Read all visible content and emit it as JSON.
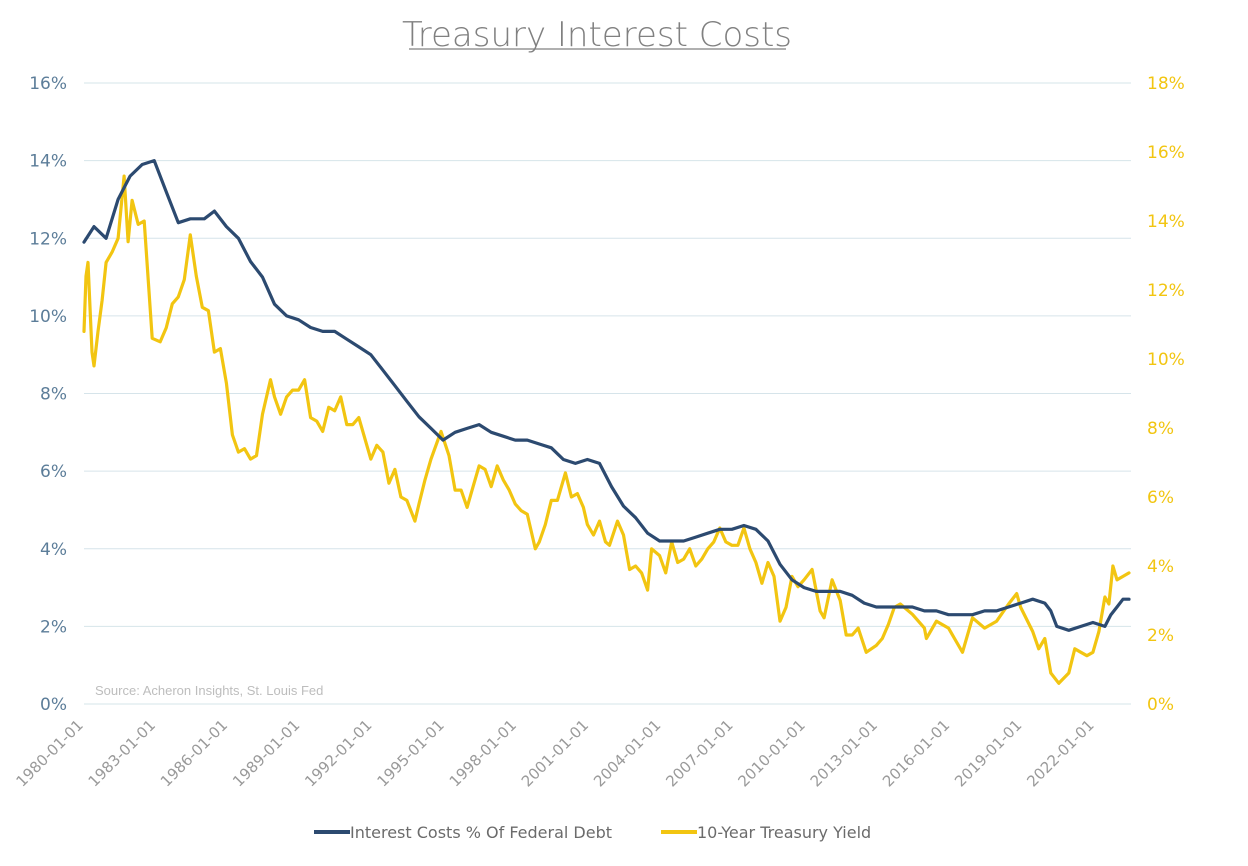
{
  "chart_data": {
    "type": "line",
    "title": "Treasury Interest Costs",
    "source": "Source: Acheron Insights, St. Louis Fed",
    "x_ticks": [
      "1980-01-01",
      "1983-01-01",
      "1986-01-01",
      "1989-01-01",
      "1992-01-01",
      "1995-01-01",
      "1998-01-01",
      "2001-01-01",
      "2004-01-01",
      "2007-01-01",
      "2010-01-01",
      "2013-01-01",
      "2016-01-01",
      "2019-01-01",
      "2022-01-01"
    ],
    "xlim": [
      "1980-01-01",
      "2023-07-01"
    ],
    "y_left": {
      "ticks": [
        "0%",
        "2%",
        "4%",
        "6%",
        "8%",
        "10%",
        "12%",
        "14%",
        "16%"
      ],
      "ylim": [
        0,
        16
      ]
    },
    "y_right": {
      "ticks": [
        "0%",
        "2%",
        "4%",
        "6%",
        "8%",
        "10%",
        "12%",
        "14%",
        "16%",
        "18%"
      ],
      "ylim": [
        0,
        18
      ]
    },
    "grid": "horizontal",
    "legend_position": "bottom",
    "series": [
      {
        "name": "Interest Costs % Of Federal Debt",
        "axis": "left",
        "color": "#2c4a70",
        "points": [
          [
            "1980-01-01",
            11.9
          ],
          [
            "1980-06-01",
            12.3
          ],
          [
            "1980-12-01",
            12.0
          ],
          [
            "1981-06-01",
            13.0
          ],
          [
            "1981-12-01",
            13.6
          ],
          [
            "1982-06-01",
            13.9
          ],
          [
            "1982-12-01",
            14.0
          ],
          [
            "1983-06-01",
            13.2
          ],
          [
            "1983-12-01",
            12.4
          ],
          [
            "1984-06-01",
            12.5
          ],
          [
            "1985-01-01",
            12.5
          ],
          [
            "1985-06-01",
            12.7
          ],
          [
            "1985-12-01",
            12.3
          ],
          [
            "1986-06-01",
            12.0
          ],
          [
            "1986-12-01",
            11.4
          ],
          [
            "1987-06-01",
            11.0
          ],
          [
            "1987-12-01",
            10.3
          ],
          [
            "1988-06-01",
            10.0
          ],
          [
            "1988-12-01",
            9.9
          ],
          [
            "1989-06-01",
            9.7
          ],
          [
            "1989-12-01",
            9.6
          ],
          [
            "1990-06-01",
            9.6
          ],
          [
            "1990-12-01",
            9.4
          ],
          [
            "1991-06-01",
            9.2
          ],
          [
            "1991-12-01",
            9.0
          ],
          [
            "1992-06-01",
            8.6
          ],
          [
            "1992-12-01",
            8.2
          ],
          [
            "1993-06-01",
            7.8
          ],
          [
            "1993-12-01",
            7.4
          ],
          [
            "1994-06-01",
            7.1
          ],
          [
            "1994-12-01",
            6.8
          ],
          [
            "1995-06-01",
            7.0
          ],
          [
            "1995-12-01",
            7.1
          ],
          [
            "1996-06-01",
            7.2
          ],
          [
            "1996-12-01",
            7.0
          ],
          [
            "1997-06-01",
            6.9
          ],
          [
            "1997-12-01",
            6.8
          ],
          [
            "1998-06-01",
            6.8
          ],
          [
            "1998-12-01",
            6.7
          ],
          [
            "1999-06-01",
            6.6
          ],
          [
            "1999-12-01",
            6.3
          ],
          [
            "2000-06-01",
            6.2
          ],
          [
            "2000-12-01",
            6.3
          ],
          [
            "2001-06-01",
            6.2
          ],
          [
            "2001-12-01",
            5.6
          ],
          [
            "2002-06-01",
            5.1
          ],
          [
            "2002-12-01",
            4.8
          ],
          [
            "2003-06-01",
            4.4
          ],
          [
            "2003-12-01",
            4.2
          ],
          [
            "2004-06-01",
            4.2
          ],
          [
            "2004-12-01",
            4.2
          ],
          [
            "2005-06-01",
            4.3
          ],
          [
            "2005-12-01",
            4.4
          ],
          [
            "2006-06-01",
            4.5
          ],
          [
            "2006-12-01",
            4.5
          ],
          [
            "2007-06-01",
            4.6
          ],
          [
            "2007-12-01",
            4.5
          ],
          [
            "2008-06-01",
            4.2
          ],
          [
            "2008-12-01",
            3.6
          ],
          [
            "2009-06-01",
            3.2
          ],
          [
            "2009-12-01",
            3.0
          ],
          [
            "2010-06-01",
            2.9
          ],
          [
            "2010-12-01",
            2.9
          ],
          [
            "2011-06-01",
            2.9
          ],
          [
            "2011-12-01",
            2.8
          ],
          [
            "2012-06-01",
            2.6
          ],
          [
            "2012-12-01",
            2.5
          ],
          [
            "2013-06-01",
            2.5
          ],
          [
            "2013-12-01",
            2.5
          ],
          [
            "2014-06-01",
            2.5
          ],
          [
            "2014-12-01",
            2.4
          ],
          [
            "2015-06-01",
            2.4
          ],
          [
            "2015-12-01",
            2.3
          ],
          [
            "2016-06-01",
            2.3
          ],
          [
            "2016-12-01",
            2.3
          ],
          [
            "2017-06-01",
            2.4
          ],
          [
            "2017-12-01",
            2.4
          ],
          [
            "2018-06-01",
            2.5
          ],
          [
            "2018-12-01",
            2.6
          ],
          [
            "2019-06-01",
            2.7
          ],
          [
            "2019-12-01",
            2.6
          ],
          [
            "2020-03-01",
            2.4
          ],
          [
            "2020-06-01",
            2.0
          ],
          [
            "2020-12-01",
            1.9
          ],
          [
            "2021-06-01",
            2.0
          ],
          [
            "2021-12-01",
            2.1
          ],
          [
            "2022-06-01",
            2.0
          ],
          [
            "2022-09-01",
            2.3
          ],
          [
            "2022-12-01",
            2.5
          ],
          [
            "2023-03-01",
            2.7
          ],
          [
            "2023-06-01",
            2.7
          ]
        ]
      },
      {
        "name": "10-Year Treasury Yield",
        "axis": "right",
        "color": "#f2c511",
        "points": [
          [
            "1980-01-01",
            10.8
          ],
          [
            "1980-02-01",
            12.4
          ],
          [
            "1980-03-01",
            12.8
          ],
          [
            "1980-04-01",
            11.5
          ],
          [
            "1980-05-01",
            10.2
          ],
          [
            "1980-06-01",
            9.8
          ],
          [
            "1980-08-01",
            10.8
          ],
          [
            "1980-10-01",
            11.7
          ],
          [
            "1980-12-01",
            12.8
          ],
          [
            "1981-03-01",
            13.1
          ],
          [
            "1981-06-01",
            13.5
          ],
          [
            "1981-09-01",
            15.3
          ],
          [
            "1981-11-01",
            13.4
          ],
          [
            "1982-01-01",
            14.6
          ],
          [
            "1982-04-01",
            13.9
          ],
          [
            "1982-07-01",
            14.0
          ],
          [
            "1982-09-01",
            12.3
          ],
          [
            "1982-11-01",
            10.6
          ],
          [
            "1983-03-01",
            10.5
          ],
          [
            "1983-06-01",
            10.9
          ],
          [
            "1983-09-01",
            11.6
          ],
          [
            "1983-12-01",
            11.8
          ],
          [
            "1984-03-01",
            12.3
          ],
          [
            "1984-06-01",
            13.6
          ],
          [
            "1984-09-01",
            12.4
          ],
          [
            "1984-12-01",
            11.5
          ],
          [
            "1985-03-01",
            11.4
          ],
          [
            "1985-06-01",
            10.2
          ],
          [
            "1985-09-01",
            10.3
          ],
          [
            "1985-12-01",
            9.3
          ],
          [
            "1986-03-01",
            7.8
          ],
          [
            "1986-06-01",
            7.3
          ],
          [
            "1986-09-01",
            7.4
          ],
          [
            "1986-12-01",
            7.1
          ],
          [
            "1987-03-01",
            7.2
          ],
          [
            "1987-06-01",
            8.4
          ],
          [
            "1987-10-01",
            9.4
          ],
          [
            "1987-12-01",
            8.9
          ],
          [
            "1988-03-01",
            8.4
          ],
          [
            "1988-06-01",
            8.9
          ],
          [
            "1988-09-01",
            9.1
          ],
          [
            "1988-12-01",
            9.1
          ],
          [
            "1989-03-01",
            9.4
          ],
          [
            "1989-06-01",
            8.3
          ],
          [
            "1989-09-01",
            8.2
          ],
          [
            "1989-12-01",
            7.9
          ],
          [
            "1990-03-01",
            8.6
          ],
          [
            "1990-06-01",
            8.5
          ],
          [
            "1990-09-01",
            8.9
          ],
          [
            "1990-12-01",
            8.1
          ],
          [
            "1991-03-01",
            8.1
          ],
          [
            "1991-06-01",
            8.3
          ],
          [
            "1991-09-01",
            7.7
          ],
          [
            "1991-12-01",
            7.1
          ],
          [
            "1992-03-01",
            7.5
          ],
          [
            "1992-06-01",
            7.3
          ],
          [
            "1992-09-01",
            6.4
          ],
          [
            "1992-12-01",
            6.8
          ],
          [
            "1993-03-01",
            6.0
          ],
          [
            "1993-06-01",
            5.9
          ],
          [
            "1993-10-01",
            5.3
          ],
          [
            "1993-12-01",
            5.8
          ],
          [
            "1994-03-01",
            6.5
          ],
          [
            "1994-06-01",
            7.1
          ],
          [
            "1994-11-01",
            7.9
          ],
          [
            "1995-03-01",
            7.2
          ],
          [
            "1995-06-01",
            6.2
          ],
          [
            "1995-09-01",
            6.2
          ],
          [
            "1995-12-01",
            5.7
          ],
          [
            "1996-03-01",
            6.3
          ],
          [
            "1996-06-01",
            6.9
          ],
          [
            "1996-09-01",
            6.8
          ],
          [
            "1996-12-01",
            6.3
          ],
          [
            "1997-03-01",
            6.9
          ],
          [
            "1997-06-01",
            6.5
          ],
          [
            "1997-09-01",
            6.2
          ],
          [
            "1997-12-01",
            5.8
          ],
          [
            "1998-03-01",
            5.6
          ],
          [
            "1998-06-01",
            5.5
          ],
          [
            "1998-10-01",
            4.5
          ],
          [
            "1998-12-01",
            4.7
          ],
          [
            "1999-03-01",
            5.2
          ],
          [
            "1999-06-01",
            5.9
          ],
          [
            "1999-09-01",
            5.9
          ],
          [
            "2000-01-01",
            6.7
          ],
          [
            "2000-04-01",
            6.0
          ],
          [
            "2000-07-01",
            6.1
          ],
          [
            "2000-10-01",
            5.7
          ],
          [
            "2000-12-01",
            5.2
          ],
          [
            "2001-03-01",
            4.9
          ],
          [
            "2001-06-01",
            5.3
          ],
          [
            "2001-09-01",
            4.7
          ],
          [
            "2001-11-01",
            4.6
          ],
          [
            "2002-03-01",
            5.3
          ],
          [
            "2002-06-01",
            4.9
          ],
          [
            "2002-09-01",
            3.9
          ],
          [
            "2002-12-01",
            4.0
          ],
          [
            "2003-03-01",
            3.8
          ],
          [
            "2003-06-01",
            3.3
          ],
          [
            "2003-08-01",
            4.5
          ],
          [
            "2003-12-01",
            4.3
          ],
          [
            "2004-03-01",
            3.8
          ],
          [
            "2004-06-01",
            4.7
          ],
          [
            "2004-09-01",
            4.1
          ],
          [
            "2004-12-01",
            4.2
          ],
          [
            "2005-03-01",
            4.5
          ],
          [
            "2005-06-01",
            4.0
          ],
          [
            "2005-09-01",
            4.2
          ],
          [
            "2005-12-01",
            4.5
          ],
          [
            "2006-03-01",
            4.7
          ],
          [
            "2006-06-01",
            5.1
          ],
          [
            "2006-09-01",
            4.7
          ],
          [
            "2006-12-01",
            4.6
          ],
          [
            "2007-03-01",
            4.6
          ],
          [
            "2007-06-01",
            5.1
          ],
          [
            "2007-09-01",
            4.5
          ],
          [
            "2007-12-01",
            4.1
          ],
          [
            "2008-03-01",
            3.5
          ],
          [
            "2008-06-01",
            4.1
          ],
          [
            "2008-09-01",
            3.7
          ],
          [
            "2008-12-01",
            2.4
          ],
          [
            "2009-03-01",
            2.8
          ],
          [
            "2009-06-01",
            3.7
          ],
          [
            "2009-09-01",
            3.4
          ],
          [
            "2009-12-01",
            3.6
          ],
          [
            "2010-04-01",
            3.9
          ],
          [
            "2010-08-01",
            2.7
          ],
          [
            "2010-10-01",
            2.5
          ],
          [
            "2011-02-01",
            3.6
          ],
          [
            "2011-06-01",
            3.0
          ],
          [
            "2011-09-01",
            2.0
          ],
          [
            "2011-12-01",
            2.0
          ],
          [
            "2012-03-01",
            2.2
          ],
          [
            "2012-07-01",
            1.5
          ],
          [
            "2012-12-01",
            1.7
          ],
          [
            "2013-03-01",
            1.9
          ],
          [
            "2013-06-01",
            2.3
          ],
          [
            "2013-09-01",
            2.8
          ],
          [
            "2013-12-01",
            2.9
          ],
          [
            "2014-06-01",
            2.6
          ],
          [
            "2014-12-01",
            2.2
          ],
          [
            "2015-01-01",
            1.9
          ],
          [
            "2015-06-01",
            2.4
          ],
          [
            "2015-12-01",
            2.2
          ],
          [
            "2016-03-01",
            1.9
          ],
          [
            "2016-07-01",
            1.5
          ],
          [
            "2016-12-01",
            2.5
          ],
          [
            "2017-06-01",
            2.2
          ],
          [
            "2017-12-01",
            2.4
          ],
          [
            "2018-06-01",
            2.9
          ],
          [
            "2018-10-01",
            3.2
          ],
          [
            "2018-12-01",
            2.8
          ],
          [
            "2019-06-01",
            2.1
          ],
          [
            "2019-09-01",
            1.6
          ],
          [
            "2019-12-01",
            1.9
          ],
          [
            "2020-03-01",
            0.9
          ],
          [
            "2020-07-01",
            0.6
          ],
          [
            "2020-12-01",
            0.9
          ],
          [
            "2021-03-01",
            1.6
          ],
          [
            "2021-06-01",
            1.5
          ],
          [
            "2021-09-01",
            1.4
          ],
          [
            "2021-12-01",
            1.5
          ],
          [
            "2022-03-01",
            2.1
          ],
          [
            "2022-06-01",
            3.1
          ],
          [
            "2022-08-01",
            2.9
          ],
          [
            "2022-10-01",
            4.0
          ],
          [
            "2022-12-01",
            3.6
          ],
          [
            "2023-03-01",
            3.7
          ],
          [
            "2023-06-01",
            3.8
          ]
        ]
      }
    ]
  }
}
